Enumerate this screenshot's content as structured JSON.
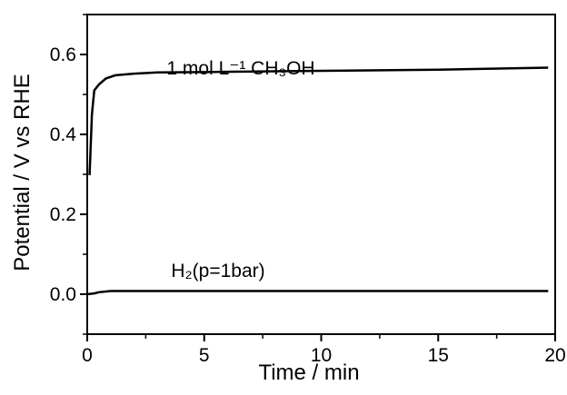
{
  "chart_data": {
    "type": "line",
    "xlabel": "Time / min",
    "ylabel": "Potential / V vs RHE",
    "xlim": [
      0,
      20
    ],
    "xticks": [
      0,
      5,
      10,
      15,
      20
    ],
    "xminorticks": [
      2.5,
      7.5,
      12.5,
      17.5
    ],
    "ylim": [
      -0.1,
      0.7
    ],
    "yticks": [
      {
        "value": 0,
        "label": "0.0"
      },
      0.2,
      0.4,
      0.6
    ],
    "yminorticks": [
      -0.1,
      0.1,
      0.3,
      0.5,
      0.7
    ],
    "grid": false,
    "series": [
      {
        "name": "1 mol L⁻¹ CH₃OH",
        "color": "#000000",
        "x": [
          0.1,
          0.2,
          0.3,
          0.5,
          0.8,
          1.2,
          2,
          3,
          5,
          10,
          15,
          19.7
        ],
        "values": [
          0.298,
          0.45,
          0.51,
          0.525,
          0.54,
          0.548,
          0.552,
          0.555,
          0.556,
          0.559,
          0.562,
          0.567
        ]
      },
      {
        "name": "H₂(p=1bar)",
        "color": "#000000",
        "x": [
          0,
          0.3,
          0.5,
          1,
          5,
          10,
          15,
          19.7
        ],
        "values": [
          0,
          0.002,
          0.005,
          0.008,
          0.008,
          0.008,
          0.008,
          0.008
        ]
      }
    ]
  }
}
